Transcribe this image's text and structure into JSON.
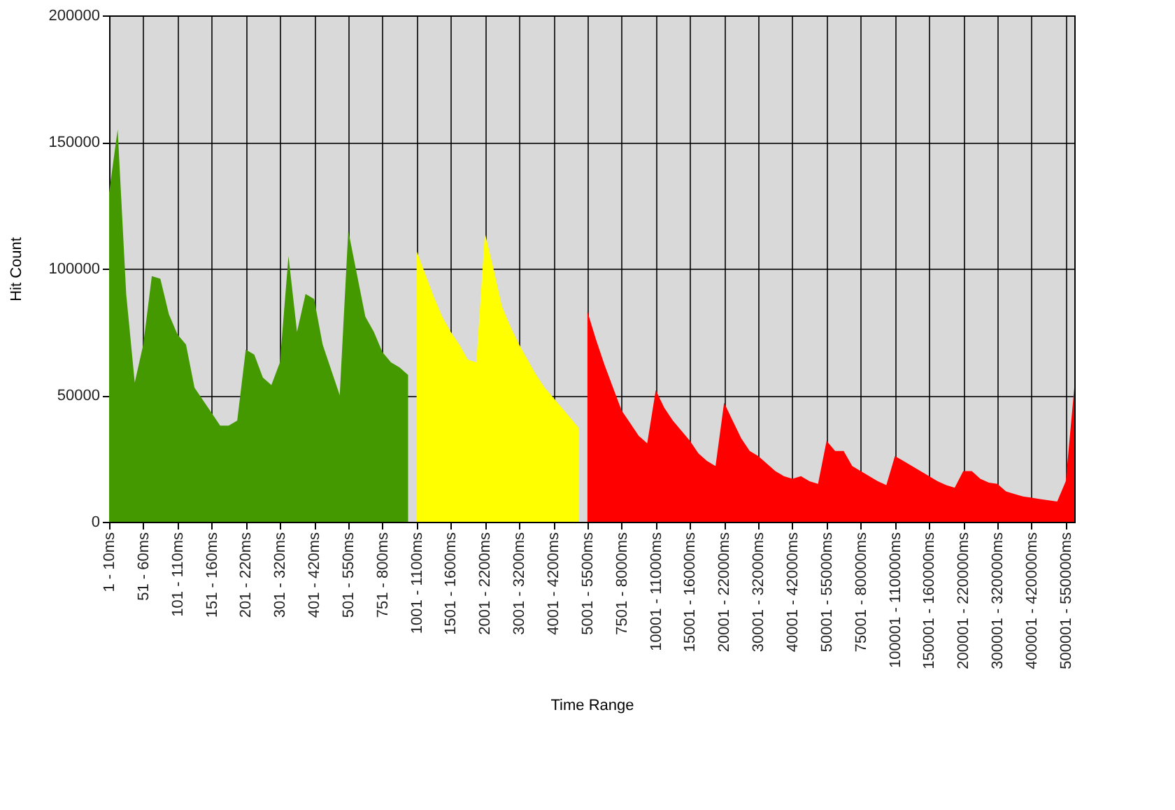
{
  "chart_data": {
    "type": "area",
    "xlabel": "Time Range",
    "ylabel": "Hit Count",
    "categories": [
      "1 - 10ms",
      null,
      null,
      null,
      "51 - 60ms",
      null,
      null,
      null,
      "101 - 110ms",
      null,
      null,
      null,
      "151 - 160ms",
      null,
      null,
      null,
      "201 - 220ms",
      null,
      null,
      null,
      "301 - 320ms",
      null,
      null,
      null,
      "401 - 420ms",
      null,
      null,
      null,
      "501 - 550ms",
      null,
      null,
      null,
      "751 - 800ms",
      null,
      null,
      null,
      "1001 - 1100ms",
      null,
      null,
      null,
      "1501 - 1600ms",
      null,
      null,
      null,
      "2001 - 2200ms",
      null,
      null,
      null,
      "3001 - 3200ms",
      null,
      null,
      null,
      "4001 - 4200ms",
      null,
      null,
      null,
      "5001 - 5500ms",
      null,
      null,
      null,
      "7501 - 8000ms",
      null,
      null,
      null,
      "10001 - 11000ms",
      null,
      null,
      null,
      "15001 - 16000ms",
      null,
      null,
      null,
      "20001 - 22000ms",
      null,
      null,
      null,
      "30001 - 32000ms",
      null,
      null,
      null,
      "40001 - 42000ms",
      null,
      null,
      null,
      "50001 - 55000ms",
      null,
      null,
      null,
      "75001 - 80000ms",
      null,
      null,
      null,
      "100001 - 110000ms",
      null,
      null,
      null,
      "150001 - 160000ms",
      null,
      null,
      null,
      "200001 - 220000ms",
      null,
      null,
      null,
      "300001 - 320000ms",
      null,
      null,
      null,
      "400001 - 420000ms",
      null,
      null,
      null,
      "500001 - 550000ms",
      null
    ],
    "series": [
      {
        "color": "#449900",
        "values": [
          130000,
          155000,
          90000,
          55000,
          70000,
          97000,
          96000,
          82000,
          74000,
          70000,
          53000,
          48000,
          43000,
          38000,
          38000,
          40000,
          68000,
          66000,
          57000,
          54000,
          63000,
          105000,
          75000,
          90000,
          88000,
          70000,
          60000,
          50000,
          115000,
          98000,
          81000,
          75000,
          67000,
          63000,
          61000,
          58000,
          null,
          null,
          null,
          null,
          null,
          null,
          null,
          null,
          null,
          null,
          null,
          null,
          null,
          null,
          null,
          null,
          null,
          null,
          null,
          null,
          null,
          null,
          null,
          null,
          null,
          null,
          null,
          null,
          null,
          null,
          null,
          null,
          null,
          null,
          null,
          null,
          null,
          null,
          null,
          null,
          null,
          null,
          null,
          null,
          null,
          null,
          null,
          null,
          null,
          null,
          null,
          null,
          null,
          null,
          null,
          null,
          null,
          null,
          null,
          null,
          null,
          null,
          null,
          null,
          null,
          null,
          null,
          null,
          null,
          null,
          null,
          null,
          null,
          null,
          null,
          null,
          null,
          null
        ]
      },
      {
        "color": "#ffff00",
        "values": [
          null,
          null,
          null,
          null,
          null,
          null,
          null,
          null,
          null,
          null,
          null,
          null,
          null,
          null,
          null,
          null,
          null,
          null,
          null,
          null,
          null,
          null,
          null,
          null,
          null,
          null,
          null,
          null,
          null,
          null,
          null,
          null,
          null,
          null,
          null,
          null,
          107000,
          98000,
          89000,
          81000,
          75000,
          70000,
          64000,
          63000,
          114000,
          100000,
          85000,
          77000,
          70000,
          64000,
          58000,
          53000,
          49000,
          45000,
          41000,
          37000,
          null,
          null,
          null,
          null,
          null,
          null,
          null,
          null,
          null,
          null,
          null,
          null,
          null,
          null,
          null,
          null,
          null,
          null,
          null,
          null,
          null,
          null,
          null,
          null,
          null,
          null,
          null,
          null,
          null,
          null,
          null,
          null,
          null,
          null,
          null,
          null,
          null,
          null,
          null,
          null,
          null,
          null,
          null,
          null,
          null,
          null,
          null,
          null,
          null,
          null,
          null,
          null,
          null,
          null,
          null,
          null,
          null,
          null
        ]
      },
      {
        "color": "#ff0000",
        "values": [
          null,
          null,
          null,
          null,
          null,
          null,
          null,
          null,
          null,
          null,
          null,
          null,
          null,
          null,
          null,
          null,
          null,
          null,
          null,
          null,
          null,
          null,
          null,
          null,
          null,
          null,
          null,
          null,
          null,
          null,
          null,
          null,
          null,
          null,
          null,
          null,
          null,
          null,
          null,
          null,
          null,
          null,
          null,
          null,
          null,
          null,
          null,
          null,
          null,
          null,
          null,
          null,
          null,
          null,
          null,
          null,
          83000,
          72000,
          62000,
          53000,
          44000,
          39000,
          34000,
          31000,
          52000,
          45000,
          40000,
          36000,
          32000,
          27000,
          24000,
          22000,
          47000,
          40000,
          33000,
          28000,
          26000,
          23000,
          20000,
          18000,
          17000,
          18000,
          16000,
          15000,
          32000,
          28000,
          28000,
          22000,
          20000,
          18000,
          16000,
          14500,
          26000,
          24000,
          22000,
          20000,
          18000,
          16000,
          14500,
          13500,
          20000,
          20000,
          17000,
          15500,
          15000,
          12000,
          11000,
          10000,
          9500,
          9000,
          8500,
          8000,
          16000,
          53000
        ]
      }
    ],
    "ylim": [
      0,
      200000
    ],
    "yticks": [
      0,
      50000,
      100000,
      150000,
      200000
    ],
    "grid": true
  }
}
